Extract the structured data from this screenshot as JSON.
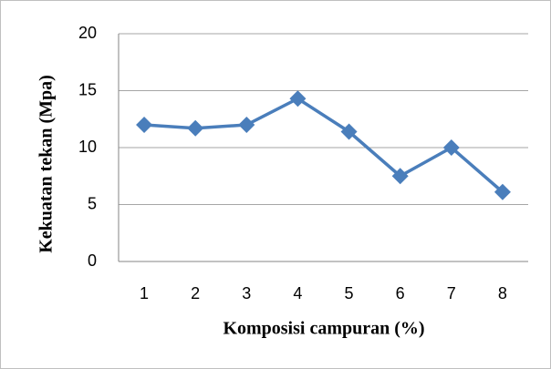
{
  "chart_data": {
    "type": "line",
    "categories": [
      "1",
      "2",
      "3",
      "4",
      "5",
      "6",
      "7",
      "8"
    ],
    "values": [
      12,
      11.7,
      12,
      14.3,
      11.4,
      7.5,
      10,
      6.1
    ],
    "color": "#4a7ebb",
    "xlabel": "Komposisi campuran (%)",
    "ylabel": "Kekuatan tekan (Mpa)",
    "ylim": [
      0,
      20
    ],
    "yticks": [
      0,
      5,
      10,
      15,
      20
    ],
    "grid": true
  }
}
